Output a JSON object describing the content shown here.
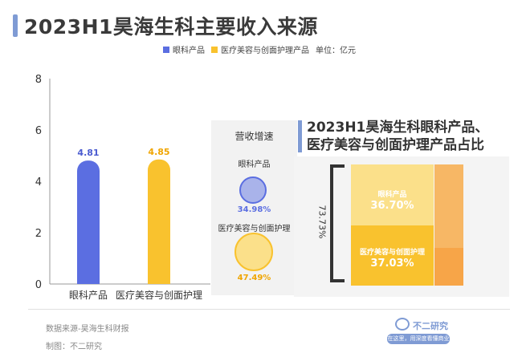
{
  "title": "2023H1昊海生科主要收入来源",
  "legend": {
    "items": [
      "眼科产品",
      "医疗美容与创面护理产品"
    ],
    "unit": "单位：亿元"
  },
  "colors": {
    "ophthalmic": "#5b6ee1",
    "aesthetic": "#f9c22e",
    "aesthetic_light": "#fbe08a",
    "aesthetic_orange": "#f7a548",
    "accent": "#7f9bd4"
  },
  "chart_data": {
    "type": "bar",
    "categories": [
      "眼科产品",
      "医疗美容与创面护理"
    ],
    "values": [
      4.81,
      4.85
    ],
    "ylim": [
      0,
      8
    ],
    "yticks": [
      0,
      2,
      4,
      6,
      8
    ],
    "data_labels": [
      "4.81",
      "4.85"
    ]
  },
  "growth": {
    "title": "营收增速",
    "items": [
      {
        "label": "眼科产品",
        "value": "34.98%"
      },
      {
        "label": "医疗美容与创面护理",
        "value": "47.49%"
      }
    ]
  },
  "composition": {
    "title_line1": "2023H1昊海生科眼科产品、",
    "title_line2": "医疗美容与创面护理产品占比",
    "total": "73.73%",
    "blocks": [
      {
        "name": "眼科产品",
        "value": "36.70%"
      },
      {
        "name": "医疗美容与创面护理",
        "value": "37.03%"
      }
    ]
  },
  "footer": {
    "source": "数据来源-昊海生科财报",
    "author": "制图：不二研究"
  },
  "brand": {
    "name": "不二研究",
    "tagline": "在这里，用深度看懂商业"
  }
}
